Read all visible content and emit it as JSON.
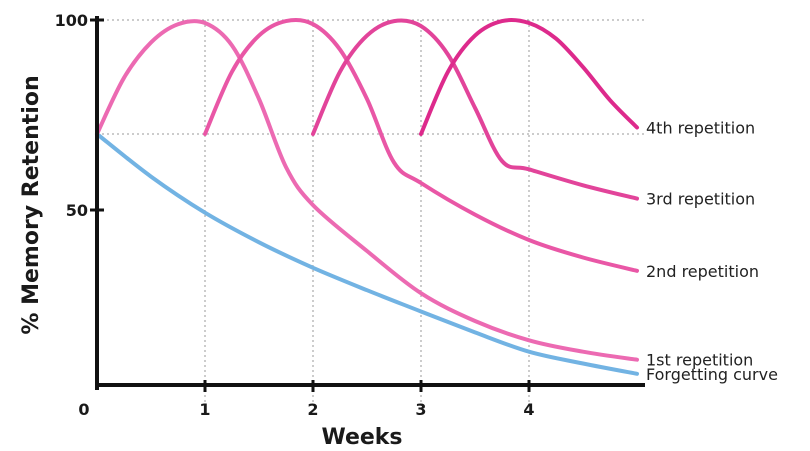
{
  "chart_data": {
    "type": "line",
    "xlabel": "Weeks",
    "ylabel": "% Memory Retention",
    "x_ticks": [
      "0",
      "1",
      "2",
      "3",
      "4"
    ],
    "y_ticks": [
      "50",
      "100"
    ],
    "xlim": [
      0,
      5
    ],
    "ylim": [
      0,
      100
    ],
    "gridlines": "dotted guides at y=70 and y=100 and at the curve peaks",
    "series": [
      {
        "name": "Forgetting curve",
        "color": "#72b3e3",
        "points": [
          [
            0,
            70
          ],
          [
            0.5,
            58.8
          ],
          [
            1,
            49.3
          ],
          [
            1.5,
            41.5
          ],
          [
            2,
            34.8
          ],
          [
            2.5,
            28.9
          ],
          [
            3,
            23.3
          ],
          [
            3.5,
            17.8
          ],
          [
            4,
            12.7
          ],
          [
            4.5,
            9.6
          ],
          [
            5,
            6.9
          ]
        ]
      },
      {
        "name": "1st repetition",
        "color": "#ec6ab2",
        "points": [
          [
            0,
            70
          ],
          [
            0.25,
            84.8
          ],
          [
            0.5,
            94.1
          ],
          [
            0.75,
            98.9
          ],
          [
            1,
            99.2
          ],
          [
            1.25,
            93.3
          ],
          [
            1.5,
            79.2
          ],
          [
            1.75,
            61.3
          ],
          [
            2,
            51.3
          ],
          [
            2.5,
            39.2
          ],
          [
            3,
            28.1
          ],
          [
            3.5,
            20.8
          ],
          [
            4,
            15.7
          ],
          [
            4.5,
            12.7
          ],
          [
            5,
            10.6
          ]
        ]
      },
      {
        "name": "2nd repetition",
        "color": "#e957a6",
        "points": [
          [
            1,
            70
          ],
          [
            1.25,
            86.4
          ],
          [
            1.5,
            95.9
          ],
          [
            1.75,
            99.7
          ],
          [
            2,
            98.9
          ],
          [
            2.25,
            92.2
          ],
          [
            2.5,
            79.2
          ],
          [
            2.75,
            62.5
          ],
          [
            3,
            57.1
          ],
          [
            3.5,
            48.8
          ],
          [
            4,
            42.1
          ],
          [
            4.5,
            37.5
          ],
          [
            5,
            34
          ]
        ]
      },
      {
        "name": "3rd repetition",
        "color": "#e2449a",
        "points": [
          [
            2,
            70
          ],
          [
            2.25,
            86.4
          ],
          [
            2.5,
            95.9
          ],
          [
            2.75,
            99.7
          ],
          [
            3,
            98.4
          ],
          [
            3.25,
            90.9
          ],
          [
            3.5,
            76.9
          ],
          [
            3.75,
            62.9
          ],
          [
            4,
            60.7
          ],
          [
            4.5,
            56.5
          ],
          [
            5,
            53
          ]
        ]
      },
      {
        "name": "4th repetition",
        "color": "#dd2a8c",
        "points": [
          [
            3,
            70
          ],
          [
            3.25,
            86.4
          ],
          [
            3.5,
            95.9
          ],
          [
            3.75,
            99.7
          ],
          [
            4,
            99.2
          ],
          [
            4.25,
            95.1
          ],
          [
            4.5,
            87.6
          ],
          [
            4.75,
            78.9
          ],
          [
            5,
            71.7
          ]
        ]
      }
    ]
  }
}
